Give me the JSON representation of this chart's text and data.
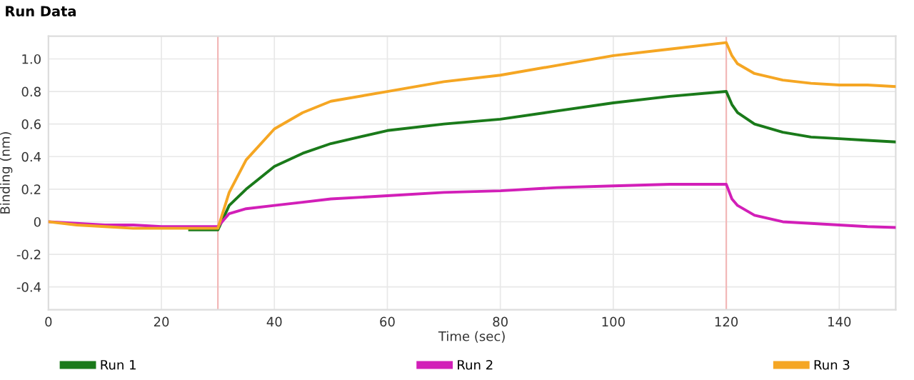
{
  "chart_data": {
    "type": "line",
    "title": "Run Data",
    "xlabel": "Time (sec)",
    "ylabel": "Binding (nm)",
    "xlim": [
      0,
      150
    ],
    "xticks": [
      0,
      20,
      40,
      60,
      80,
      100,
      120,
      140
    ],
    "ylim": [
      -0.54,
      1.14
    ],
    "yticks": [
      {
        "value": -0.4,
        "label": "-0.4"
      },
      {
        "value": -0.2,
        "label": "-0.2"
      },
      0,
      0.2,
      0.4,
      0.6,
      0.8,
      {
        "value": 1.0,
        "label": "1.0"
      }
    ],
    "grid": true,
    "legend": "bottom",
    "marker": "none",
    "line_style": "solid",
    "ref_lines": [
      {
        "axis": "x",
        "value": 30,
        "color": "#f2b8b8"
      },
      {
        "axis": "x",
        "value": 120,
        "color": "#f2b8b8"
      }
    ],
    "x": [
      0,
      5,
      10,
      15,
      20,
      25,
      30,
      32,
      35,
      40,
      45,
      50,
      60,
      70,
      80,
      90,
      100,
      110,
      120,
      121,
      122,
      125,
      130,
      135,
      140,
      145,
      150
    ],
    "series": [
      {
        "name": "Run 1",
        "color": "#1a7a1a",
        "values": [
          null,
          null,
          null,
          null,
          null,
          -0.05,
          -0.05,
          0.1,
          0.2,
          0.34,
          0.42,
          0.48,
          0.56,
          0.6,
          0.63,
          0.68,
          0.73,
          0.77,
          0.8,
          0.72,
          0.67,
          0.6,
          0.55,
          0.52,
          0.51,
          0.5,
          0.49
        ]
      },
      {
        "name": "Run 2",
        "color": "#d21fb8",
        "values": [
          0,
          -0.01,
          -0.02,
          -0.02,
          -0.03,
          -0.03,
          -0.03,
          0.05,
          0.08,
          0.1,
          0.12,
          0.14,
          0.16,
          0.18,
          0.19,
          0.21,
          0.22,
          0.23,
          0.23,
          0.14,
          0.1,
          0.04,
          0.0,
          -0.01,
          -0.02,
          -0.03,
          -0.035
        ]
      },
      {
        "name": "Run 3",
        "color": "#f5a623",
        "values": [
          0,
          -0.02,
          -0.03,
          -0.04,
          -0.04,
          -0.04,
          -0.04,
          0.18,
          0.38,
          0.57,
          0.67,
          0.74,
          0.8,
          0.86,
          0.9,
          0.96,
          1.02,
          1.06,
          1.1,
          1.02,
          0.97,
          0.91,
          0.87,
          0.85,
          0.84,
          0.84,
          0.83
        ]
      }
    ]
  }
}
